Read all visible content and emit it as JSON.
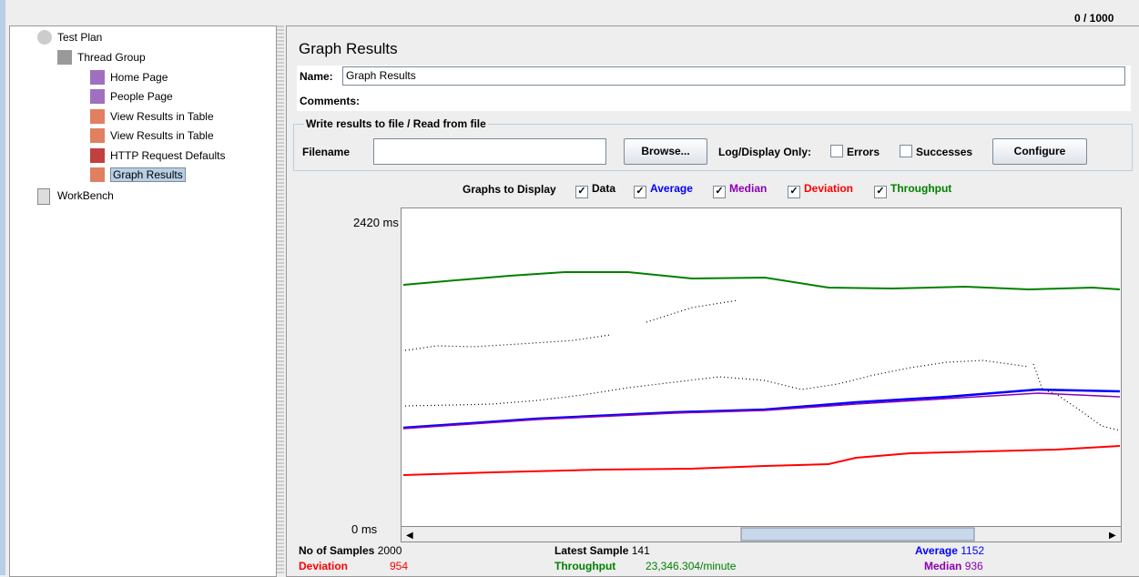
{
  "toolbar": {
    "counter": "0 / 1000"
  },
  "tree": {
    "nodes": [
      {
        "label": "Test Plan"
      },
      {
        "label": "Thread Group"
      },
      {
        "label": "Home Page"
      },
      {
        "label": "People Page"
      },
      {
        "label": "View Results in Table"
      },
      {
        "label": "View Results in Table"
      },
      {
        "label": "HTTP Request Defaults"
      },
      {
        "label": "Graph Results"
      },
      {
        "label": "WorkBench"
      }
    ]
  },
  "panel": {
    "title": "Graph Results",
    "name_label": "Name:",
    "name_value": "Graph Results",
    "comments_label": "Comments:",
    "file_group": "Write results to file / Read from file",
    "filename_label": "Filename",
    "browse": "Browse...",
    "log_label": "Log/Display Only:",
    "errors": "Errors",
    "successes": "Successes",
    "configure": "Configure",
    "graphs_label": "Graphs to Display",
    "graphs": [
      {
        "label": "Data",
        "color": "#000000"
      },
      {
        "label": "Average",
        "color": "#0000ff"
      },
      {
        "label": "Median",
        "color": "#8b00b0"
      },
      {
        "label": "Deviation",
        "color": "#ff0000"
      },
      {
        "label": "Throughput",
        "color": "#008000"
      }
    ],
    "y_max": "2420 ms",
    "y_min": "0 ms",
    "stats": [
      {
        "label": "No of Samples",
        "value": "2000",
        "color": "#000000"
      },
      {
        "label": "Latest Sample",
        "value": "141",
        "color": "#000000"
      },
      {
        "label": "Average",
        "value": "1152",
        "color": "#0000ff"
      },
      {
        "label": "Deviation",
        "value": "954",
        "color": "#ff0000"
      },
      {
        "label": "Throughput",
        "value": "23,346.304/minute",
        "color": "#008000"
      },
      {
        "label": "Median",
        "value": "936",
        "color": "#8b00b0"
      }
    ]
  }
}
